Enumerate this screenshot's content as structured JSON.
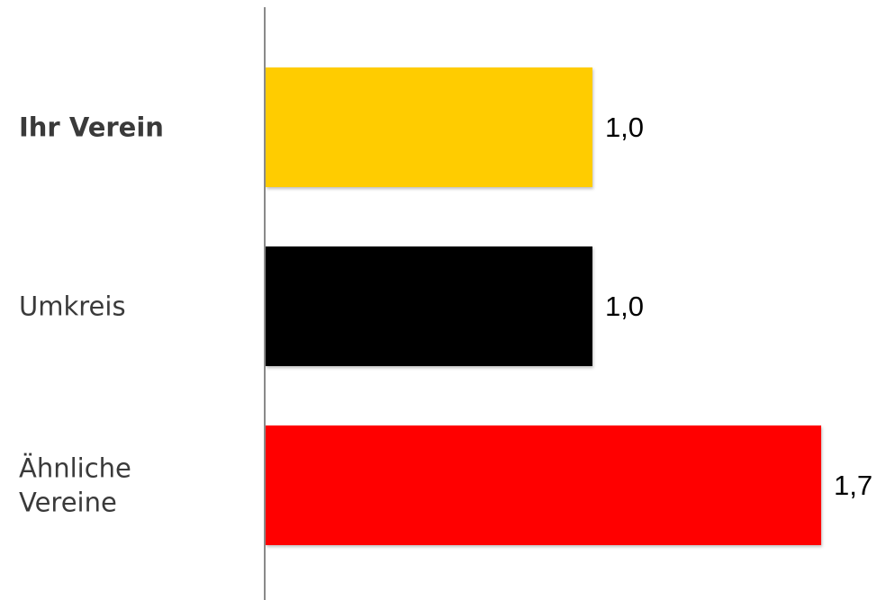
{
  "chart_data": {
    "type": "bar",
    "orientation": "horizontal",
    "categories": [
      {
        "lines": [
          "Ihr Verein"
        ],
        "bold": true
      },
      {
        "lines": [
          "Umkreis"
        ],
        "bold": false
      },
      {
        "lines": [
          "Ähnliche",
          "Vereine"
        ],
        "bold": false
      }
    ],
    "values": [
      1.0,
      1.0,
      1.7
    ],
    "value_labels": [
      "1,0",
      "1,0",
      "1,7"
    ],
    "colors": [
      "#ffcc00",
      "#000000",
      "#ff0000"
    ],
    "axis_color": "#8a8a8a",
    "xlim": [
      0,
      1.7
    ],
    "grid": false,
    "legend": "none"
  }
}
